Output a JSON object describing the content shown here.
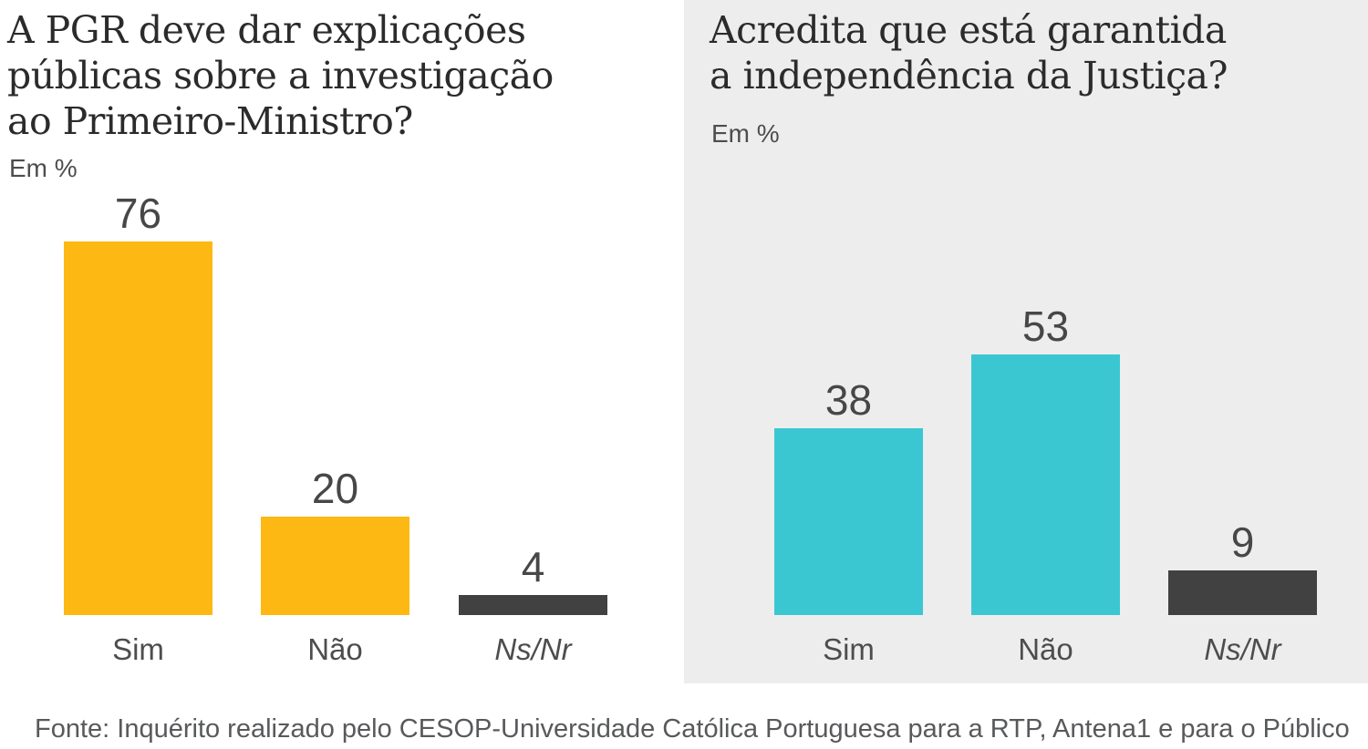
{
  "colors": {
    "yellow": "#FDB813",
    "teal": "#3BC7D1",
    "dark": "#414141",
    "panel_background": "#EDEDED",
    "title_text": "#2B2B2B",
    "label_text": "#4D4D4D",
    "footer_text": "#58595B"
  },
  "chart_data": [
    {
      "type": "bar",
      "title": "A PGR deve dar explicações públicas sobre a investigação ao Primeiro-Ministro?",
      "title_lines": [
        "A PGR deve dar explicações",
        "públicas sobre a investigação",
        "ao Primeiro-Ministro?"
      ],
      "subtitle": "Em %",
      "categories": [
        "Sim",
        "Não",
        "Ns/Nr"
      ],
      "values": [
        76,
        20,
        4
      ],
      "value_labels": [
        "76",
        "20",
        "4"
      ],
      "bar_colors": [
        "#FDB813",
        "#FDB813",
        "#414141"
      ],
      "xlabel": "",
      "ylabel": "Em %",
      "ylim": [
        0,
        100
      ],
      "grid": false,
      "legend": false
    },
    {
      "type": "bar",
      "title": "Acredita que está garantida a independência da Justiça?",
      "title_lines": [
        "Acredita que está garantida",
        "a independência da Justiça?"
      ],
      "subtitle": "Em %",
      "categories": [
        "Sim",
        "Não",
        "Ns/Nr"
      ],
      "values": [
        38,
        53,
        9
      ],
      "value_labels": [
        "38",
        "53",
        "9"
      ],
      "bar_colors": [
        "#3BC7D1",
        "#3BC7D1",
        "#414141"
      ],
      "xlabel": "",
      "ylabel": "Em %",
      "ylim": [
        0,
        100
      ],
      "grid": false,
      "legend": false
    }
  ],
  "footer": {
    "source": "Fonte: Inquérito realizado pelo CESOP-Universidade Católica Portuguesa para a RTP, Antena1 e para o Público"
  }
}
